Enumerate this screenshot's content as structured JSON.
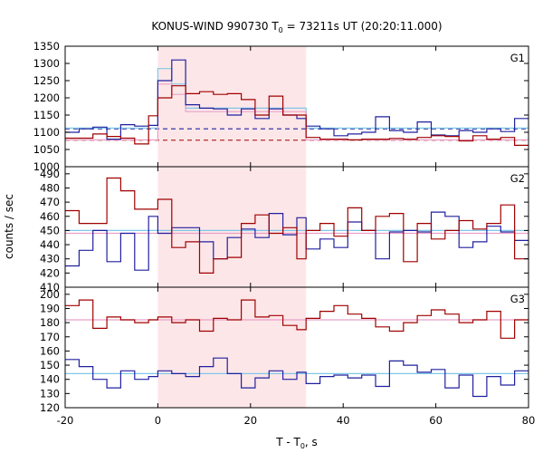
{
  "chart_data": {
    "type": "line",
    "title": "KONUS-WIND 990730 T",
    "title_sub": "0",
    "title_rest": " = 73211s UT (20:20:11.000)",
    "xlabel": "T - T",
    "xlabel_sub": "0",
    "xlabel_rest": ", s",
    "ylabel": "counts / sec",
    "xlim": [
      -20,
      80
    ],
    "x_ticks": [
      "-20",
      "0",
      "20",
      "40",
      "60",
      "80"
    ],
    "highlight_interval": [
      0,
      32
    ],
    "colors": {
      "dark_red": "#a00000",
      "dark_blue": "#2020a0",
      "light_blue": "#7ec8e8",
      "pink": "#e8a0c8",
      "highlight": "#fde6e8"
    },
    "panels": [
      {
        "label": "G1",
        "ylim": [
          1000,
          1350
        ],
        "y_ticks": [
          "1000",
          "1050",
          "1100",
          "1150",
          "1200",
          "1250",
          "1300",
          "1350"
        ],
        "bin_edges": [
          -20,
          -17,
          -14,
          -11,
          -8,
          -5,
          -2,
          0,
          3,
          6,
          9,
          12,
          15,
          18,
          21,
          24,
          27,
          30,
          32,
          35,
          38,
          41,
          44,
          47,
          50,
          53,
          56,
          59,
          62,
          65,
          68,
          71,
          74,
          77,
          80
        ],
        "series": [
          {
            "color_key": "dark_red",
            "values": [
              1083,
              1083,
              1095,
              1088,
              1083,
              1066,
              1148,
              1200,
              1235,
              1212,
              1218,
              1210,
              1212,
              1195,
              1150,
              1205,
              1150,
              1150,
              1085,
              1080,
              1080,
              1078,
              1080,
              1080,
              1082,
              1080,
              1085,
              1090,
              1088,
              1075,
              1090,
              1080,
              1085,
              1062
            ],
            "step": true
          },
          {
            "color_key": "dark_blue",
            "values": [
              1100,
              1110,
              1115,
              1080,
              1122,
              1118,
              1120,
              1250,
              1310,
              1180,
              1170,
              1168,
              1150,
              1168,
              1140,
              1168,
              1150,
              1140,
              1118,
              1110,
              1090,
              1095,
              1100,
              1145,
              1105,
              1100,
              1130,
              1092,
              1090,
              1105,
              1100,
              1110,
              1102,
              1140
            ],
            "step": true
          },
          {
            "color_key": "light_blue",
            "values": [
              1112,
              1112,
              1112,
              1112,
              1112,
              1112,
              1112,
              1285,
              1240,
              1170,
              1170,
              1170,
              1170,
              1170,
              1170,
              1170,
              1170,
              1170,
              1112,
              1112,
              1112,
              1112,
              1112,
              1112,
              1112,
              1112,
              1112,
              1112,
              1112,
              1112,
              1112,
              1112,
              1112,
              1112
            ],
            "step": true
          },
          {
            "color_key": "pink",
            "values": [
              1078,
              1078,
              1078,
              1078,
              1078,
              1078,
              1078,
              1240,
              1210,
              1160,
              1160,
              1160,
              1160,
              1160,
              1160,
              1160,
              1160,
              1160,
              1078,
              1078,
              1078,
              1078,
              1078,
              1078,
              1078,
              1078,
              1078,
              1078,
              1078,
              1078,
              1078,
              1078,
              1078,
              1078
            ],
            "step": true
          }
        ],
        "baselines": [
          {
            "color_key": "dark_blue",
            "value": 1110,
            "dashed": true
          },
          {
            "color_key": "dark_red",
            "value": 1077,
            "dashed": true
          }
        ]
      },
      {
        "label": "G2",
        "ylim": [
          410,
          495
        ],
        "y_ticks": [
          "410",
          "420",
          "430",
          "440",
          "450",
          "460",
          "470",
          "480",
          "490"
        ],
        "bin_edges": [
          -20,
          -17,
          -14,
          -11,
          -8,
          -5,
          -2,
          0,
          3,
          6,
          9,
          12,
          15,
          18,
          21,
          24,
          27,
          30,
          32,
          35,
          38,
          41,
          44,
          47,
          50,
          53,
          56,
          59,
          62,
          65,
          68,
          71,
          74,
          77,
          80
        ],
        "series": [
          {
            "color_key": "dark_red",
            "values": [
              464,
              455,
              455,
              487,
              478,
              465,
              465,
              472,
              438,
              442,
              420,
              430,
              431,
              455,
              461,
              448,
              452,
              430,
              450,
              455,
              446,
              466,
              450,
              460,
              462,
              428,
              455,
              444,
              450,
              457,
              451,
              455,
              468,
              430
            ],
            "step": true
          },
          {
            "color_key": "dark_blue",
            "values": [
              425,
              436,
              450,
              428,
              448,
              422,
              460,
              448,
              452,
              452,
              442,
              430,
              445,
              451,
              445,
              462,
              447,
              459,
              437,
              444,
              438,
              456,
              450,
              430,
              449,
              450,
              449,
              463,
              460,
              438,
              442,
              453,
              449,
              443
            ],
            "step": true
          },
          {
            "color_key": "light_blue",
            "values": [
              450,
              450,
              450,
              450,
              450,
              450,
              450,
              450,
              450,
              450,
              450,
              450,
              450,
              450,
              450,
              450,
              450,
              450,
              450,
              450,
              450,
              450,
              450,
              450,
              450,
              450,
              450,
              450,
              450,
              450,
              450,
              450,
              450,
              450
            ],
            "step": true
          },
          {
            "color_key": "pink",
            "values": [
              448,
              448,
              448,
              448,
              448,
              448,
              448,
              448,
              448,
              448,
              448,
              448,
              448,
              448,
              448,
              448,
              448,
              448,
              448,
              448,
              448,
              448,
              448,
              448,
              448,
              448,
              448,
              448,
              448,
              448,
              448,
              448,
              448,
              448
            ],
            "step": true
          }
        ],
        "baselines": []
      },
      {
        "label": "G3",
        "ylim": [
          120,
          205
        ],
        "y_ticks": [
          "120",
          "130",
          "140",
          "150",
          "160",
          "170",
          "180",
          "190",
          "200"
        ],
        "bin_edges": [
          -20,
          -17,
          -14,
          -11,
          -8,
          -5,
          -2,
          0,
          3,
          6,
          9,
          12,
          15,
          18,
          21,
          24,
          27,
          30,
          32,
          35,
          38,
          41,
          44,
          47,
          50,
          53,
          56,
          59,
          62,
          65,
          68,
          71,
          74,
          77,
          80
        ],
        "series": [
          {
            "color_key": "dark_red",
            "values": [
              192,
              196,
              176,
              184,
              182,
              180,
              182,
              184,
              180,
              182,
              174,
              183,
              182,
              196,
              184,
              185,
              178,
              175,
              183,
              188,
              192,
              186,
              183,
              177,
              174,
              180,
              185,
              189,
              186,
              180,
              182,
              188,
              169,
              182
            ],
            "step": true
          },
          {
            "color_key": "dark_blue",
            "values": [
              154,
              149,
              140,
              134,
              146,
              140,
              142,
              146,
              144,
              142,
              149,
              155,
              144,
              134,
              141,
              146,
              140,
              145,
              137,
              142,
              143,
              141,
              143,
              135,
              153,
              150,
              145,
              147,
              134,
              143,
              128,
              142,
              136,
              146
            ],
            "step": true
          },
          {
            "color_key": "light_blue",
            "values": [
              144,
              144,
              144,
              144,
              144,
              144,
              144,
              144,
              144,
              144,
              144,
              144,
              144,
              144,
              144,
              144,
              144,
              144,
              144,
              144,
              144,
              144,
              144,
              144,
              144,
              144,
              144,
              144,
              144,
              144,
              144,
              144,
              144,
              144
            ],
            "step": true
          },
          {
            "color_key": "pink",
            "values": [
              182,
              182,
              182,
              182,
              182,
              182,
              182,
              182,
              182,
              182,
              182,
              182,
              182,
              182,
              182,
              182,
              182,
              182,
              182,
              182,
              182,
              182,
              182,
              182,
              182,
              182,
              182,
              182,
              182,
              182,
              182,
              182,
              182,
              182
            ],
            "step": true
          }
        ],
        "baselines": []
      }
    ]
  }
}
